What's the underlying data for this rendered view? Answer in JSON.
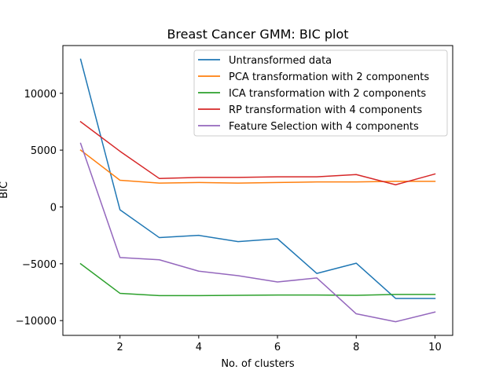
{
  "chart_data": {
    "type": "line",
    "title": "Breast Cancer GMM: BIC plot",
    "xlabel": "No. of clusters",
    "ylabel": "BIC",
    "x": [
      1,
      2,
      3,
      4,
      5,
      6,
      7,
      8,
      9,
      10
    ],
    "xlim": [
      0.55,
      10.45
    ],
    "ylim": [
      -11300,
      14200
    ],
    "xticks": [
      2,
      4,
      6,
      8,
      10
    ],
    "yticks": [
      -10000,
      -5000,
      0,
      5000,
      10000
    ],
    "grid": false,
    "legend_position": "upper right",
    "series": [
      {
        "name": "Untransformed data",
        "color": "#1f77b4",
        "values": [
          13000,
          -250,
          -2700,
          -2500,
          -3050,
          -2800,
          -5850,
          -4950,
          -8050,
          -8050
        ]
      },
      {
        "name": "PCA transformation with 2 components",
        "color": "#ff7f0e",
        "values": [
          5000,
          2350,
          2100,
          2150,
          2100,
          2150,
          2200,
          2200,
          2250,
          2250
        ]
      },
      {
        "name": "ICA transformation with 2 components",
        "color": "#2ca02c",
        "values": [
          -5000,
          -7600,
          -7800,
          -7800,
          -7780,
          -7750,
          -7750,
          -7780,
          -7700,
          -7700
        ]
      },
      {
        "name": "RP transformation with 4 components",
        "color": "#d62728",
        "values": [
          7500,
          4900,
          2500,
          2600,
          2600,
          2650,
          2650,
          2850,
          1950,
          2900
        ]
      },
      {
        "name": "Feature Selection with 4 components",
        "color": "#9467bd",
        "values": [
          5600,
          -4450,
          -4650,
          -5650,
          -6050,
          -6600,
          -6250,
          -9400,
          -10100,
          -9250
        ]
      }
    ]
  }
}
